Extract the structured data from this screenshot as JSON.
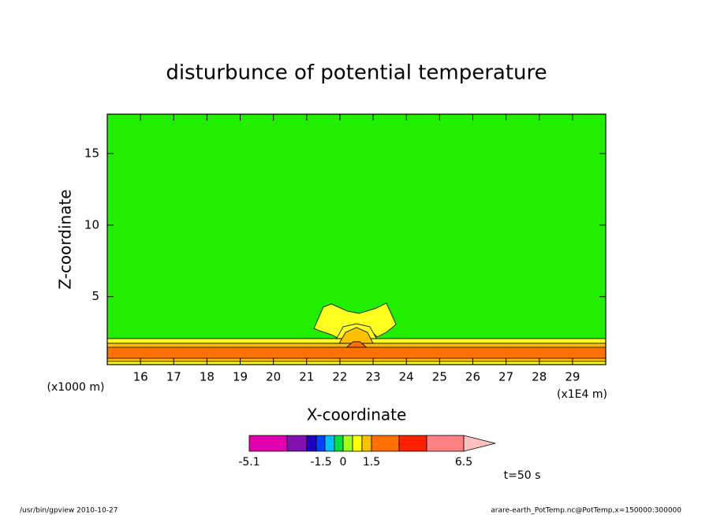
{
  "chart_data": {
    "type": "contour",
    "title": "disturbunce of potential temperature",
    "x_label": "X-coordinate",
    "y_label": "Z-coordinate",
    "y_unit": "(x1000 m)",
    "x_unit": "(x1E4 m)",
    "time_label": "t=50 s",
    "footer_left": "/usr/bin/gpview   2010-10-27",
    "footer_right": "arare-earth_PotTemp.nc@PotTemp,x=150000:300000",
    "background_color": "#22ee00",
    "xlim": [
      15,
      30
    ],
    "ylim": [
      0.25,
      17.75
    ],
    "xticks": [
      16,
      17,
      18,
      19,
      20,
      21,
      22,
      23,
      24,
      25,
      26,
      27,
      28,
      29
    ],
    "yticks": [
      5,
      10,
      15
    ],
    "regions": [
      {
        "color": "#ffff20",
        "x": [
          15,
          30,
          30,
          15
        ],
        "y": [
          0.25,
          0.25,
          2.07,
          2.07
        ]
      },
      {
        "color": "#ffc000",
        "x": [
          15,
          30,
          30,
          15
        ],
        "y": [
          0.47,
          0.47,
          1.74,
          1.74
        ]
      },
      {
        "color": "#ff7000",
        "x": [
          15,
          30,
          30,
          15
        ],
        "y": [
          0.69,
          0.69,
          1.46,
          1.46
        ]
      },
      {
        "color": "#ffff20",
        "x": [
          21.22,
          21.5,
          21.74,
          22.22,
          22.57,
          23.05,
          23.4,
          23.69,
          23.4,
          23.12,
          22.93,
          22.64,
          22.45,
          22.17,
          21.98,
          21.74,
          21.38
        ],
        "y": [
          2.78,
          4.27,
          4.49,
          3.99,
          3.83,
          4.16,
          4.54,
          3.06,
          2.51,
          2.18,
          2.62,
          2.95,
          3.0,
          2.73,
          2.07,
          2.34,
          2.62
        ]
      },
      {
        "color": "#ffff20",
        "x": [
          21.9,
          22.1,
          22.5,
          22.9,
          23.1
        ],
        "y": [
          2.07,
          2.9,
          3.1,
          2.9,
          2.07
        ]
      },
      {
        "color": "#ffc000",
        "x": [
          21.98,
          22.17,
          22.5,
          22.83,
          23.0
        ],
        "y": [
          1.74,
          2.5,
          2.85,
          2.5,
          1.74
        ]
      },
      {
        "color": "#ff7000",
        "x": [
          22.2,
          22.4,
          22.6,
          22.8
        ],
        "y": [
          1.46,
          1.85,
          1.85,
          1.46
        ]
      }
    ],
    "colorbar": {
      "colors": [
        "#e000b0",
        "#8010b0",
        "#2000c0",
        "#0040ff",
        "#00c0ff",
        "#00e040",
        "#a0ff20",
        "#ffff00",
        "#ffc000",
        "#ff7000",
        "#ff2000",
        "#ff8080",
        "#ffc0c0"
      ],
      "ticks": [
        -5.1,
        -1.5,
        0,
        1.5,
        6.5
      ]
    }
  }
}
